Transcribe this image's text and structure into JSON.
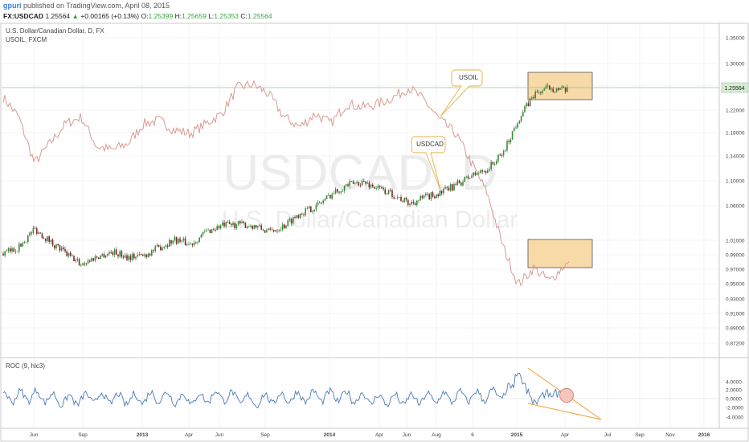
{
  "header": {
    "publisher": "gpuri",
    "published_text": "published on TradingView.com, April 08, 2015",
    "symbol": "FX:USDCAD",
    "last": "1.25564",
    "change": "+0.00165 (+0.13%)",
    "open_label": "O:",
    "open": "1.25399",
    "high_label": "H:",
    "high": "1.25659",
    "low_label": "L:",
    "low": "1.25353",
    "close_label": "C:",
    "close": "1.25564"
  },
  "main_pane": {
    "title": "U.S. Dollar/Canadian Dollar, D, FX",
    "overlay_title": "USOIL, FXCM",
    "watermark_symbol": "USDCAD, D",
    "watermark_name": "U.S. Dollar/Canadian Dollar",
    "price_tag": "1.25564",
    "callout_usoil": "USOIL",
    "callout_usdcad": "USDCAD",
    "y_ticks": [
      "1.35000",
      "1.30000",
      "1.26000",
      "1.22000",
      "1.18000",
      "1.14000",
      "1.10000",
      "1.06000",
      "1.01000",
      "0.99000",
      "0.97000",
      "0.95000",
      "0.93000",
      "0.91000",
      "0.89000",
      "0.87200"
    ]
  },
  "roc_pane": {
    "title": "ROC (9, hlc3)",
    "y_ticks": [
      "4.0000",
      "2.0000",
      "0.0000",
      "-2.0000",
      "-4.0000"
    ]
  },
  "x_axis": {
    "ticks": [
      "Jun",
      "Sep",
      "2013",
      "Apr",
      "Jun",
      "Sep",
      "2014",
      "Apr",
      "Jun",
      "Aug",
      "6",
      "2015",
      "Apr",
      "Jul",
      "Sep",
      "Nov",
      "2016"
    ]
  },
  "colors": {
    "usdcad_up": "#3a8a3a",
    "usdcad_down": "#7a2a2a",
    "usoil": "#d99a92",
    "roc": "#4a7ab8",
    "box_fill": "#f8d9a8",
    "box_stroke": "#555555",
    "callout_stroke": "#e8b040",
    "trendline": "#f0a030",
    "price_tag_bg": "#d7ecd3",
    "hline": "#8fc49b"
  },
  "chart_data": [
    {
      "type": "line",
      "series": [
        {
          "name": "USDCAD",
          "x": [
            "2012-04",
            "2012-05",
            "2012-06",
            "2012-07",
            "2012-08",
            "2012-09",
            "2012-10",
            "2012-11",
            "2012-12",
            "2013-01",
            "2013-02",
            "2013-03",
            "2013-04",
            "2013-05",
            "2013-06",
            "2013-07",
            "2013-08",
            "2013-09",
            "2013-10",
            "2013-11",
            "2013-12",
            "2014-01",
            "2014-02",
            "2014-03",
            "2014-04",
            "2014-05",
            "2014-06",
            "2014-07",
            "2014-08",
            "2014-09",
            "2014-10",
            "2014-11",
            "2014-12",
            "2015-01",
            "2015-02",
            "2015-03",
            "2015-04"
          ],
          "values": [
            0.995,
            1.005,
            1.035,
            1.015,
            0.995,
            0.978,
            0.99,
            0.998,
            0.99,
            0.992,
            1.005,
            1.018,
            1.01,
            1.03,
            1.04,
            1.042,
            1.04,
            1.03,
            1.04,
            1.06,
            1.07,
            1.09,
            1.105,
            1.11,
            1.1,
            1.09,
            1.075,
            1.085,
            1.092,
            1.105,
            1.12,
            1.13,
            1.155,
            1.21,
            1.25,
            1.262,
            1.256
          ]
        },
        {
          "name": "USOIL",
          "x": [
            "2012-04",
            "2012-05",
            "2012-06",
            "2012-07",
            "2012-08",
            "2012-09",
            "2012-10",
            "2012-11",
            "2012-12",
            "2013-01",
            "2013-02",
            "2013-03",
            "2013-04",
            "2013-05",
            "2013-06",
            "2013-07",
            "2013-08",
            "2013-09",
            "2013-10",
            "2013-11",
            "2013-12",
            "2014-01",
            "2014-02",
            "2014-03",
            "2014-04",
            "2014-05",
            "2014-06",
            "2014-07",
            "2014-08",
            "2014-09",
            "2014-10",
            "2014-11",
            "2014-12",
            "2015-01",
            "2015-02",
            "2015-03",
            "2015-04"
          ],
          "values": [
            103,
            97,
            83,
            89,
            95,
            97,
            88,
            87,
            89,
            95,
            96,
            93,
            92,
            95,
            98,
            106,
            107,
            104,
            97,
            94,
            98,
            95,
            101,
            100,
            101,
            103,
            106,
            102,
            96,
            92,
            83,
            74,
            58,
            46,
            51,
            47,
            52
          ]
        }
      ],
      "annotations": [
        "USOIL",
        "USDCAD"
      ]
    },
    {
      "type": "line",
      "title": "ROC (9, hlc3)",
      "series": [
        {
          "name": "ROC",
          "x": [
            "2012-04",
            "2012-06",
            "2012-08",
            "2012-10",
            "2012-12",
            "2013-02",
            "2013-04",
            "2013-06",
            "2013-08",
            "2013-10",
            "2013-12",
            "2014-02",
            "2014-04",
            "2014-06",
            "2014-08",
            "2014-10",
            "2014-12",
            "2015-01",
            "2015-02",
            "2015-03",
            "2015-04"
          ],
          "values": [
            0.5,
            1.5,
            -1.0,
            0.5,
            -0.5,
            1.0,
            -0.5,
            1.5,
            -1.0,
            0.5,
            1.0,
            1.0,
            -0.5,
            -0.5,
            0.5,
            1.0,
            2.0,
            5.5,
            -1.0,
            1.5,
            0.5
          ]
        }
      ],
      "ylim": [
        -5,
        5
      ]
    }
  ]
}
